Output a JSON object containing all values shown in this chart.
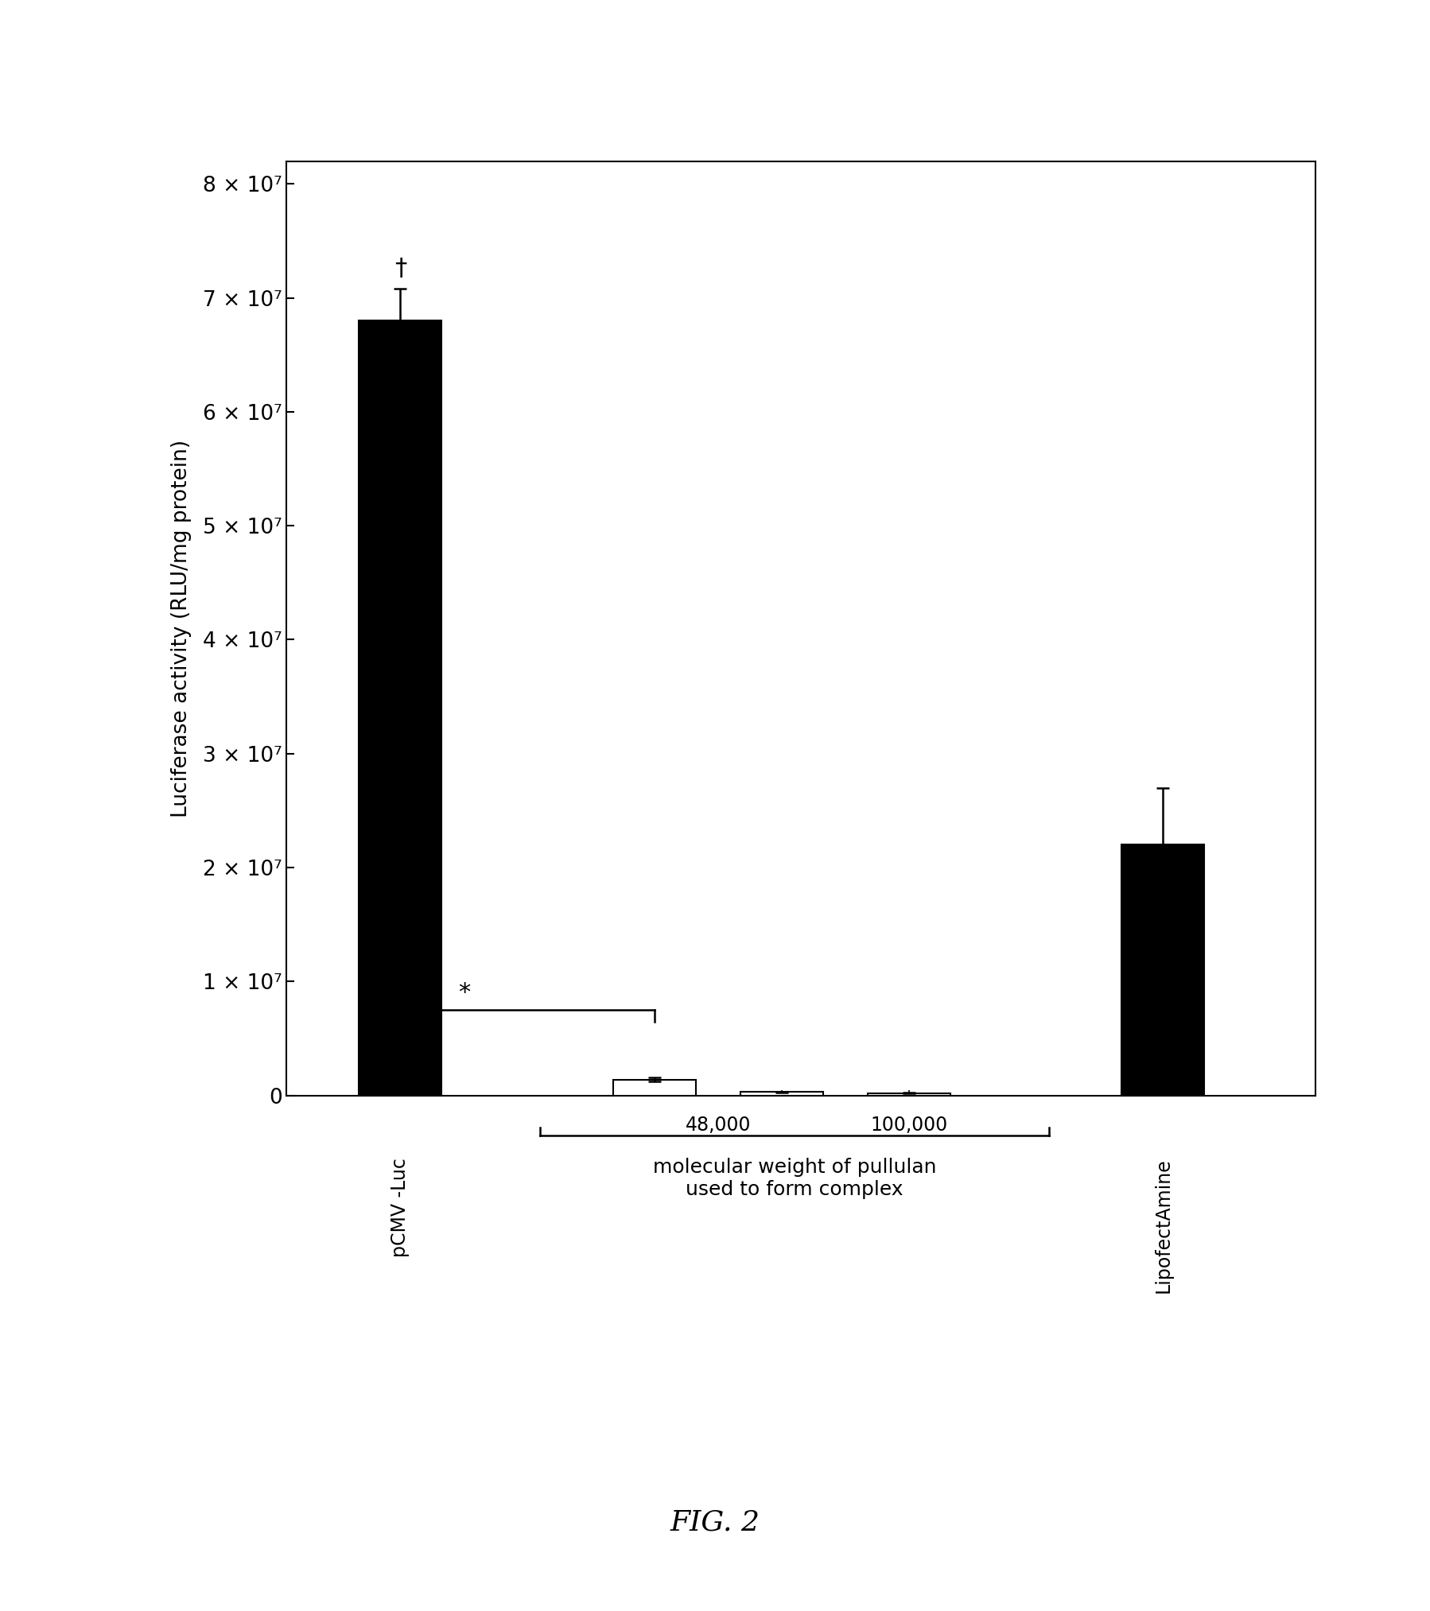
{
  "bar_positions": [
    1,
    3,
    4,
    5,
    7
  ],
  "bar_heights": [
    68000000.0,
    1400000.0,
    300000.0,
    200000.0,
    22000000.0
  ],
  "bar_errors": [
    2800000.0,
    150000.0,
    50000.0,
    30000.0,
    5000000.0
  ],
  "bar_colors": [
    "black",
    "white",
    "white",
    "white",
    "black"
  ],
  "bar_width": 0.65,
  "ylim": [
    0,
    82000000.0
  ],
  "xlim": [
    0.1,
    8.2
  ],
  "yticks": [
    0,
    10000000.0,
    20000000.0,
    30000000.0,
    40000000.0,
    50000000.0,
    60000000.0,
    70000000.0,
    80000000.0
  ],
  "ytick_labels": [
    "0",
    "1 × 10⁷",
    "2 × 10⁷",
    "3 × 10⁷",
    "4 × 10⁷",
    "5 × 10⁷",
    "6 × 10⁷",
    "7 × 10⁷",
    "8 × 10⁷"
  ],
  "ylabel": "Luciferase activity (RLU/mg protein)",
  "ylabel_fontsize": 19,
  "tick_fontsize": 19,
  "xtick_fontsize": 17,
  "annotation_fontsize": 22,
  "figlabel_fontsize": 26,
  "xlabel_pcmv": "pCMV -Luc",
  "xlabel_lipo": "LipofectAmine",
  "mw_48000": "48,000",
  "mw_100000": "100,000",
  "brace_label_line1": "molecular weight of pullulan",
  "brace_label_line2": "used to form complex",
  "fig_label": "FIG. 2",
  "dagger": "†",
  "star": "*",
  "star_bracket_x1": 1,
  "star_bracket_x2": 3,
  "star_y": 7500000.0,
  "dagger_bar_idx": 0,
  "lipo_bar_idx": 4,
  "brace_x1": 2.1,
  "brace_x2": 6.1,
  "mw48_x": 3.5,
  "mw100_x": 5.0,
  "pcmv_x": 1,
  "lipo_x": 7
}
